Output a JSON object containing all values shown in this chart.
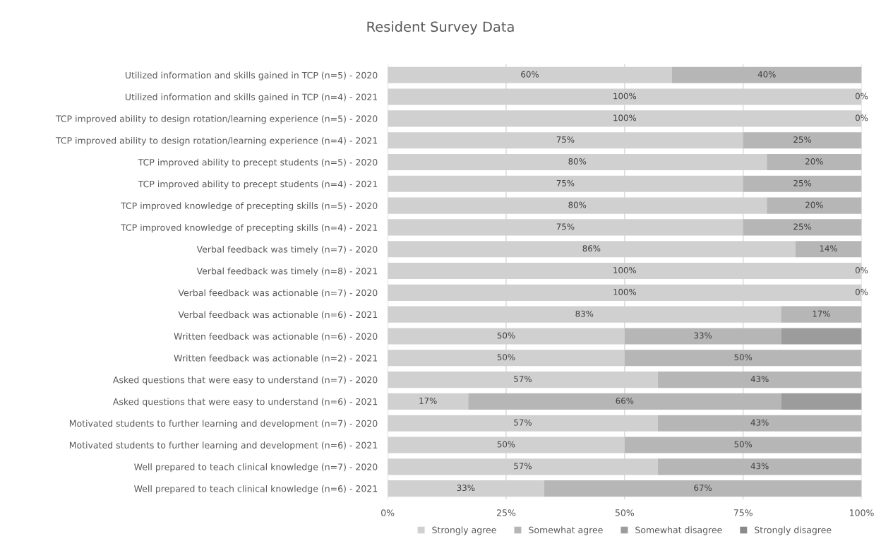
{
  "chart_data": {
    "type": "bar",
    "title": "Resident Survey Data",
    "orientation": "horizontal",
    "stacked": true,
    "categories": [
      "Utilized information and skills gained in TCP (n=5) - 2020",
      "Utilized information and skills gained in TCP (n=4) - 2021",
      "TCP improved ability to design rotation/learning experience (n=5) - 2020",
      "TCP improved ability to design rotation/learning experience (n=4) - 2021",
      "TCP improved ability to precept students (n=5) - 2020",
      "TCP improved ability to precept students (n=4) - 2021",
      "TCP improved knowledge of precepting skills (n=5) - 2020",
      "TCP improved knowledge of precepting skills (n=4) - 2021",
      "Verbal feedback was timely (n=7) - 2020",
      "Verbal feedback was timely (n=8) - 2021",
      "Verbal feedback was actionable (n=7) - 2020",
      "Verbal feedback was actionable (n=6) - 2021",
      "Written feedback was actionable (n=6) - 2020",
      "Written feedback was actionable (n=2) - 2021",
      "Asked questions that were easy to understand (n=7) - 2020",
      "Asked questions that were easy to understand (n=6) - 2021",
      "Motivated students to further learning and development (n=7) - 2020",
      "Motivated students to further learning and development (n=6) - 2021",
      "Well prepared to teach clinical knowledge (n=7) - 2020",
      "Well prepared to teach clinical knowledge (n=6) - 2021"
    ],
    "series": [
      {
        "name": "Strongly agree",
        "color": "#d0d0d0",
        "values": [
          60,
          100,
          100,
          75,
          80,
          75,
          80,
          75,
          86,
          100,
          100,
          83,
          50,
          50,
          57,
          17,
          57,
          50,
          57,
          33
        ],
        "value_labels": [
          "60%",
          "100%",
          "100%",
          "75%",
          "80%",
          "75%",
          "80%",
          "75%",
          "86%",
          "100%",
          "100%",
          "83%",
          "50%",
          "50%",
          "57%",
          "17%",
          "57%",
          "50%",
          "57%",
          "33%"
        ]
      },
      {
        "name": "Somewhat agree",
        "color": "#b6b6b6",
        "values": [
          40,
          0,
          0,
          25,
          20,
          25,
          20,
          25,
          14,
          0,
          0,
          17,
          33,
          50,
          43,
          66,
          43,
          50,
          43,
          67
        ],
        "value_labels": [
          "40%",
          "0%",
          "0%",
          "25%",
          "20%",
          "25%",
          "20%",
          "25%",
          "14%",
          "0%",
          "0%",
          "17%",
          "33%",
          "50%",
          "43%",
          "66%",
          "43%",
          "50%",
          "43%",
          "67%"
        ]
      },
      {
        "name": "Somewhat disagree",
        "color": "#9c9c9c",
        "values": [
          0,
          0,
          0,
          0,
          0,
          0,
          0,
          0,
          0,
          0,
          0,
          0,
          17,
          0,
          0,
          17,
          0,
          0,
          0,
          0
        ]
      },
      {
        "name": "Strongly disagree",
        "color": "#8a8a8a",
        "values": [
          0,
          0,
          0,
          0,
          0,
          0,
          0,
          0,
          0,
          0,
          0,
          0,
          0,
          0,
          0,
          0,
          0,
          0,
          0,
          0
        ]
      }
    ],
    "xlim": [
      0,
      100
    ],
    "xticks": [
      {
        "value": 0,
        "label": "0%"
      },
      {
        "value": 25,
        "label": "25%"
      },
      {
        "value": 50,
        "label": "50%"
      },
      {
        "value": 75,
        "label": "75%"
      },
      {
        "value": 100,
        "label": "100%"
      }
    ],
    "grid": "x",
    "legend": "bottom"
  }
}
